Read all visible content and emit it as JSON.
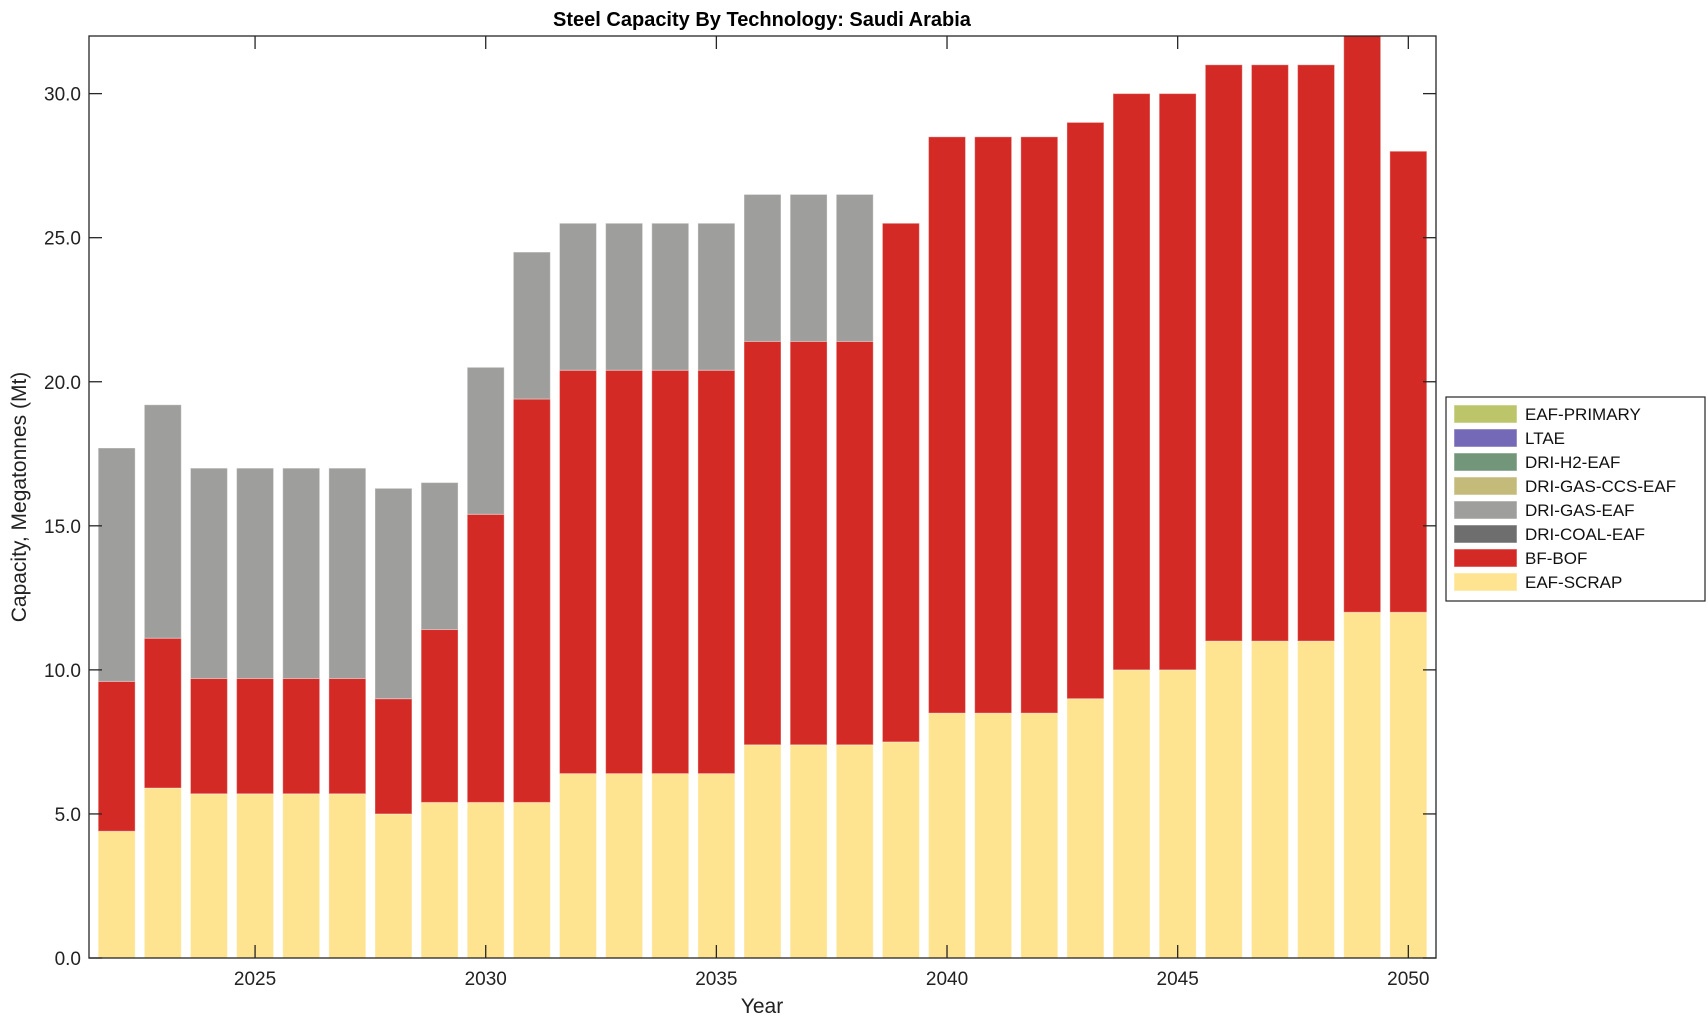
{
  "chart_data": {
    "type": "bar",
    "stacked": true,
    "title": "Steel Capacity By Technology: Saudi Arabia",
    "xlabel": "Year",
    "ylabel": "Capacity, Megatonnes (Mt)",
    "ylim": [
      0,
      32
    ],
    "xlim": [
      2021.4,
      2050.6
    ],
    "grid": false,
    "legend_position": "right",
    "x": [
      2022,
      2023,
      2024,
      2025,
      2026,
      2027,
      2028,
      2029,
      2030,
      2031,
      2032,
      2033,
      2034,
      2035,
      2036,
      2037,
      2038,
      2039,
      2040,
      2041,
      2042,
      2043,
      2044,
      2045,
      2046,
      2047,
      2048,
      2049,
      2050
    ],
    "x_ticks": [
      2025,
      2030,
      2035,
      2040,
      2045,
      2050
    ],
    "x_tick_labels": [
      "2025",
      "2030",
      "2035",
      "2040",
      "2045",
      "2050"
    ],
    "y_ticks": [
      0,
      5,
      10,
      15,
      20,
      25,
      30
    ],
    "y_tick_labels": [
      "0.0",
      "5.0",
      "10.0",
      "15.0",
      "20.0",
      "25.0",
      "30.0"
    ],
    "series": [
      {
        "name": "EAF-SCRAP",
        "color": "#fee391",
        "values": [
          4.4,
          5.9,
          5.7,
          5.7,
          5.7,
          5.7,
          5.0,
          5.4,
          5.4,
          5.4,
          6.4,
          6.4,
          6.4,
          6.4,
          7.4,
          7.4,
          7.4,
          7.5,
          8.5,
          8.5,
          8.5,
          9.0,
          10.0,
          10.0,
          11.0,
          11.0,
          11.0,
          12.0,
          12.0
        ]
      },
      {
        "name": "BF-BOF",
        "color": "#d42a25",
        "values": [
          5.2,
          5.2,
          4.0,
          4.0,
          4.0,
          4.0,
          4.0,
          6.0,
          10.0,
          14.0,
          14.0,
          14.0,
          14.0,
          14.0,
          14.0,
          14.0,
          14.0,
          18.0,
          20.0,
          20.0,
          20.0,
          20.0,
          20.0,
          20.0,
          20.0,
          20.0,
          20.0,
          20.0,
          16.0
        ]
      },
      {
        "name": "DRI-COAL-EAF",
        "color": "#6e6e6e",
        "values": [
          0,
          0,
          0,
          0,
          0,
          0,
          0,
          0,
          0,
          0,
          0,
          0,
          0,
          0,
          0,
          0,
          0,
          0,
          0,
          0,
          0,
          0,
          0,
          0,
          0,
          0,
          0,
          0,
          0
        ]
      },
      {
        "name": "DRI-GAS-EAF",
        "color": "#9e9e9c",
        "values": [
          8.1,
          8.1,
          7.3,
          7.3,
          7.3,
          7.3,
          7.3,
          5.1,
          5.1,
          5.1,
          5.1,
          5.1,
          5.1,
          5.1,
          5.1,
          5.1,
          5.1,
          0,
          0,
          0,
          0,
          0,
          0,
          0,
          0,
          0,
          0,
          0,
          0
        ]
      },
      {
        "name": "DRI-GAS-CCS-EAF",
        "color": "#c4bb7b",
        "values": [
          0,
          0,
          0,
          0,
          0,
          0,
          0,
          0,
          0,
          0,
          0,
          0,
          0,
          0,
          0,
          0,
          0,
          0,
          0,
          0,
          0,
          0,
          0,
          0,
          0,
          0,
          0,
          0,
          0
        ]
      },
      {
        "name": "DRI-H2-EAF",
        "color": "#71967a",
        "values": [
          0,
          0,
          0,
          0,
          0,
          0,
          0,
          0,
          0,
          0,
          0,
          0,
          0,
          0,
          0,
          0,
          0,
          0,
          0,
          0,
          0,
          0,
          0,
          0,
          0,
          0,
          0,
          0,
          0
        ]
      },
      {
        "name": "LTAE",
        "color": "#7469b6",
        "values": [
          0,
          0,
          0,
          0,
          0,
          0,
          0,
          0,
          0,
          0,
          0,
          0,
          0,
          0,
          0,
          0,
          0,
          0,
          0,
          0,
          0,
          0,
          0,
          0,
          0,
          0,
          0,
          0,
          0
        ]
      },
      {
        "name": "EAF-PRIMARY",
        "color": "#bdc56b",
        "values": [
          0,
          0,
          0,
          0,
          0,
          0,
          0,
          0,
          0,
          0,
          0,
          0,
          0,
          0,
          0,
          0,
          0,
          0,
          0,
          0,
          0,
          0,
          0,
          0,
          0,
          0,
          0,
          0,
          0
        ]
      }
    ],
    "legend_order": [
      "EAF-PRIMARY",
      "LTAE",
      "DRI-H2-EAF",
      "DRI-GAS-CCS-EAF",
      "DRI-GAS-EAF",
      "DRI-COAL-EAF",
      "BF-BOF",
      "EAF-SCRAP"
    ]
  }
}
